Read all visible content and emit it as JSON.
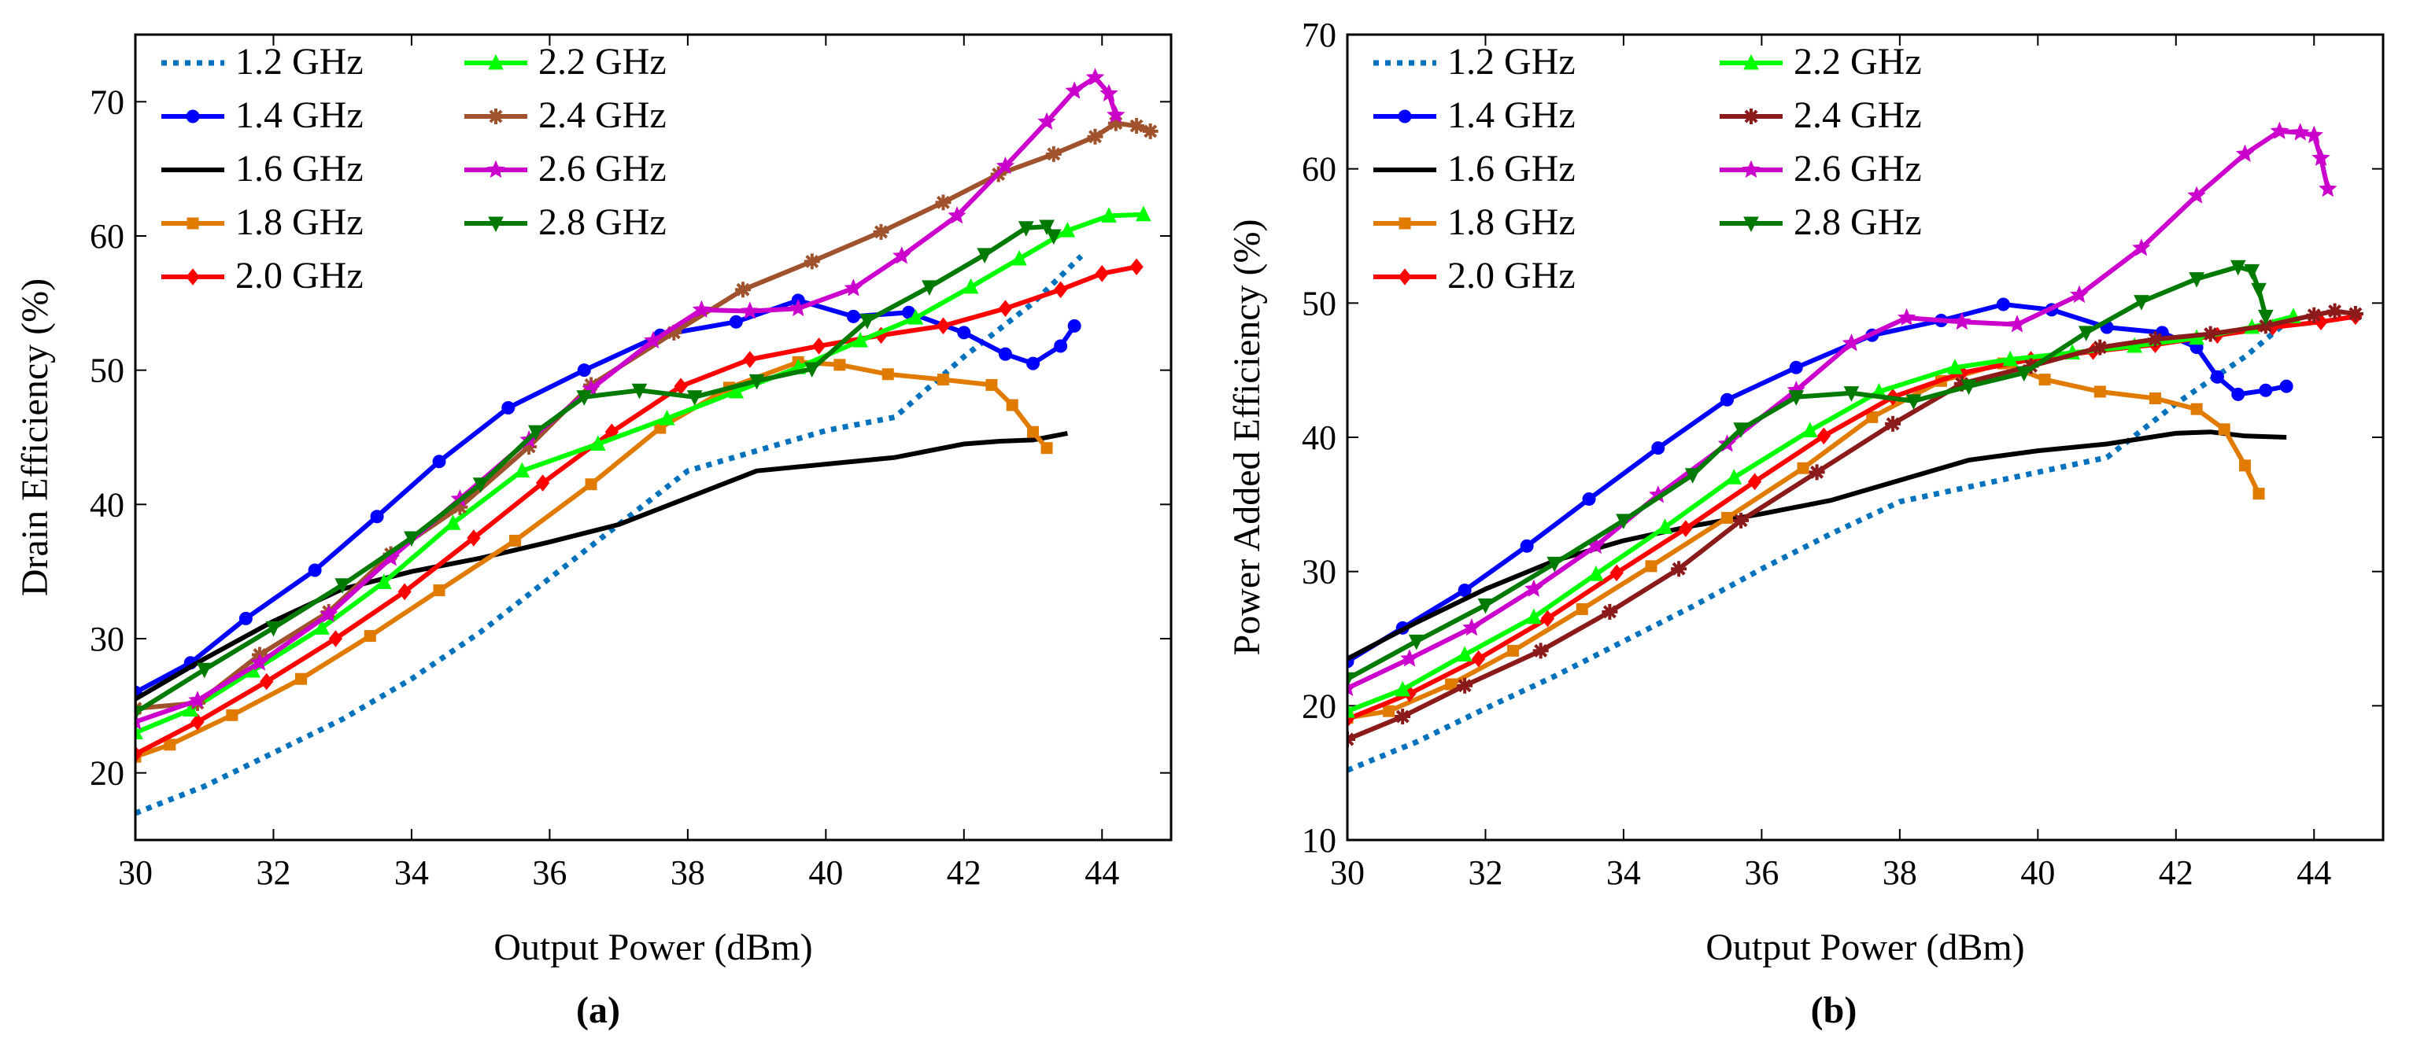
{
  "chart_data": [
    {
      "type": "line",
      "caption": "(a)",
      "xlabel": "Output Power (dBm)",
      "ylabel": "Drain Efficiency (%)",
      "xlim": [
        30,
        45
      ],
      "ylim": [
        15,
        75
      ],
      "xticks": [
        30,
        32,
        34,
        36,
        38,
        40,
        42,
        44
      ],
      "yticks": [
        20,
        30,
        40,
        50,
        60,
        70
      ],
      "legend_position": "top-left",
      "series": [
        {
          "name": "1.2 GHz",
          "color": "#0072BD",
          "style": "dotted",
          "marker": "none",
          "x": [
            30,
            31,
            32,
            33,
            34,
            35,
            36,
            37,
            38,
            39,
            40,
            41,
            42,
            43,
            43.7
          ],
          "y": [
            17,
            19,
            21.5,
            24,
            27,
            30.5,
            34.5,
            38.5,
            42.5,
            44,
            45.5,
            46.5,
            51,
            55,
            58.5
          ]
        },
        {
          "name": "1.4 GHz",
          "color": "#0000FF",
          "style": "solid",
          "marker": "circle",
          "x": [
            30,
            30.8,
            31.6,
            32.6,
            33.5,
            34.4,
            35.4,
            36.5,
            37.6,
            38.7,
            39.6,
            40.4,
            41.2,
            42,
            42.6,
            43,
            43.4,
            43.6
          ],
          "y": [
            26,
            28.2,
            31.5,
            35.1,
            39.1,
            43.2,
            47.2,
            50,
            52.6,
            53.6,
            55.2,
            54,
            54.3,
            52.8,
            51.2,
            50.5,
            51.8,
            53.3
          ]
        },
        {
          "name": "1.6 GHz",
          "color": "#000000",
          "style": "solid",
          "marker": "none",
          "x": [
            30,
            31,
            32,
            33,
            34,
            35,
            36,
            37,
            38,
            39,
            40,
            41,
            42,
            42.5,
            43,
            43.5
          ],
          "y": [
            25.5,
            28.5,
            31.3,
            33.7,
            35,
            36,
            37.2,
            38.5,
            40.5,
            42.5,
            43,
            43.5,
            44.5,
            44.7,
            44.8,
            45.3
          ]
        },
        {
          "name": "1.8 GHz",
          "color": "#E07B00",
          "style": "solid",
          "marker": "square",
          "x": [
            30,
            30.5,
            31.4,
            32.4,
            33.4,
            34.4,
            35.5,
            36.6,
            37.6,
            38.6,
            39.6,
            40.2,
            40.9,
            41.7,
            42.4,
            42.7,
            43,
            43.2
          ],
          "y": [
            21.2,
            22.1,
            24.3,
            27,
            30.2,
            33.6,
            37.3,
            41.5,
            45.7,
            48.7,
            50.6,
            50.4,
            49.7,
            49.3,
            48.9,
            47.4,
            45.4,
            44.2
          ]
        },
        {
          "name": "2.0 GHz",
          "color": "#FF0000",
          "style": "solid",
          "marker": "diamond",
          "x": [
            30,
            30.9,
            31.9,
            32.9,
            33.9,
            34.9,
            35.9,
            36.9,
            37.9,
            38.9,
            39.9,
            40.8,
            41.7,
            42.6,
            43.4,
            44,
            44.5
          ],
          "y": [
            21.4,
            23.8,
            26.8,
            30,
            33.5,
            37.5,
            41.6,
            45.4,
            48.8,
            50.8,
            51.8,
            52.6,
            53.3,
            54.6,
            56,
            57.2,
            57.7
          ]
        },
        {
          "name": "2.2 GHz",
          "color": "#00FF00",
          "style": "solid",
          "marker": "triangle-up",
          "x": [
            30,
            30.8,
            31.7,
            32.7,
            33.6,
            34.6,
            35.6,
            36.7,
            37.7,
            38.7,
            39.6,
            40.5,
            41.3,
            42.1,
            42.8,
            43.5,
            44.1,
            44.6
          ],
          "y": [
            23,
            24.7,
            27.6,
            30.8,
            34.2,
            38.6,
            42.5,
            44.5,
            46.4,
            48.4,
            50.2,
            52.2,
            53.9,
            56.2,
            58.3,
            60.4,
            61.5,
            61.6
          ]
        },
        {
          "name": "2.4 GHz",
          "color": "#A0522D",
          "style": "solid",
          "marker": "asterisk",
          "x": [
            30,
            30.9,
            31.8,
            32.8,
            33.7,
            34.7,
            35.7,
            36.6,
            37.8,
            38.8,
            39.8,
            40.8,
            41.7,
            42.5,
            43.3,
            43.9,
            44.2,
            44.5,
            44.7
          ],
          "y": [
            24.8,
            25.2,
            28.8,
            32,
            36.3,
            39.8,
            44.3,
            48.9,
            52.8,
            56,
            58.1,
            60.3,
            62.5,
            64.6,
            66.1,
            67.4,
            68.4,
            68.2,
            67.8
          ]
        },
        {
          "name": "2.6 GHz",
          "color": "#CC00CC",
          "style": "solid",
          "marker": "star",
          "x": [
            30,
            30.9,
            31.8,
            32.8,
            33.7,
            34.7,
            35.7,
            36.6,
            37.5,
            38.2,
            38.9,
            39.6,
            40.4,
            41.1,
            41.9,
            42.6,
            43.2,
            43.6,
            43.9,
            44.1,
            44.2
          ],
          "y": [
            23.8,
            25.4,
            28.2,
            31.8,
            36,
            40.4,
            44.8,
            48.6,
            52.2,
            54.5,
            54.4,
            54.6,
            56.1,
            58.5,
            61.5,
            65.2,
            68.5,
            70.8,
            71.8,
            70.6,
            69
          ]
        },
        {
          "name": "2.8 GHz",
          "color": "#007A00",
          "style": "solid",
          "marker": "triangle-down",
          "x": [
            30,
            31,
            32,
            33,
            34,
            35,
            35.8,
            36.5,
            37.3,
            38.1,
            39,
            39.8,
            40.6,
            41.5,
            42.3,
            42.9,
            43.2,
            43.3
          ],
          "y": [
            24.5,
            27.7,
            30.8,
            34,
            37.5,
            41.5,
            45.4,
            48,
            48.5,
            48,
            49.2,
            50.1,
            53.7,
            56.2,
            58.6,
            60.6,
            60.7,
            60
          ]
        }
      ]
    },
    {
      "type": "line",
      "caption": "(b)",
      "xlabel": "Output Power (dBm)",
      "ylabel": "Power Added Efficiency (%)",
      "xlim": [
        30,
        45
      ],
      "ylim": [
        10,
        70
      ],
      "xticks": [
        30,
        32,
        34,
        36,
        38,
        40,
        42,
        44
      ],
      "yticks": [
        10,
        20,
        30,
        40,
        50,
        60,
        70
      ],
      "legend_position": "top-left",
      "series": [
        {
          "name": "1.2 GHz",
          "color": "#0072BD",
          "style": "dotted",
          "marker": "none",
          "x": [
            30,
            31,
            32,
            33,
            34,
            35,
            36,
            37,
            38,
            39,
            40,
            41,
            42,
            43,
            43.7
          ],
          "y": [
            15.2,
            17.3,
            19.8,
            22.2,
            24.8,
            27.4,
            30.2,
            32.8,
            35.2,
            36.3,
            37.4,
            38.5,
            42.5,
            46,
            49
          ]
        },
        {
          "name": "1.4 GHz",
          "color": "#0000FF",
          "style": "solid",
          "marker": "circle",
          "x": [
            30,
            30.8,
            31.7,
            32.6,
            33.5,
            34.5,
            35.5,
            36.5,
            37.6,
            38.6,
            39.5,
            40.2,
            41,
            41.8,
            42.3,
            42.6,
            42.9,
            43.3,
            43.6
          ],
          "y": [
            23.3,
            25.8,
            28.6,
            31.9,
            35.4,
            39.2,
            42.8,
            45.2,
            47.6,
            48.7,
            49.9,
            49.5,
            48.2,
            47.8,
            46.7,
            44.5,
            43.2,
            43.5,
            43.8
          ]
        },
        {
          "name": "1.6 GHz",
          "color": "#000000",
          "style": "solid",
          "marker": "none",
          "x": [
            30,
            31,
            32,
            33,
            34,
            35,
            36,
            37,
            38,
            39,
            40,
            41,
            42,
            42.5,
            43,
            43.6
          ],
          "y": [
            23.5,
            26.2,
            28.7,
            30.8,
            32.3,
            33.4,
            34.3,
            35.3,
            36.8,
            38.3,
            39,
            39.5,
            40.3,
            40.4,
            40.1,
            40
          ]
        },
        {
          "name": "1.8 GHz",
          "color": "#E07B00",
          "style": "solid",
          "marker": "square",
          "x": [
            30,
            30.6,
            31.5,
            32.4,
            33.4,
            34.4,
            35.5,
            36.6,
            37.6,
            38.6,
            39.5,
            40.1,
            40.9,
            41.7,
            42.3,
            42.7,
            43,
            43.2
          ],
          "y": [
            19.1,
            19.6,
            21.6,
            24.1,
            27.2,
            30.4,
            34,
            37.7,
            41.5,
            44.2,
            45.5,
            44.3,
            43.4,
            42.9,
            42.1,
            40.6,
            37.9,
            35.8
          ]
        },
        {
          "name": "2.0 GHz",
          "color": "#FF0000",
          "style": "solid",
          "marker": "diamond",
          "x": [
            30,
            30.9,
            31.9,
            32.9,
            33.9,
            34.9,
            35.9,
            36.9,
            37.9,
            38.9,
            39.9,
            40.8,
            41.7,
            42.6,
            43.4,
            44.1,
            44.6
          ],
          "y": [
            19,
            20.9,
            23.5,
            26.5,
            29.9,
            33.2,
            36.7,
            40.1,
            43,
            44.8,
            45.8,
            46.4,
            46.9,
            47.6,
            48.2,
            48.6,
            49
          ]
        },
        {
          "name": "2.2 GHz",
          "color": "#00FF00",
          "style": "solid",
          "marker": "triangle-up",
          "x": [
            30,
            30.8,
            31.7,
            32.7,
            33.6,
            34.6,
            35.6,
            36.7,
            37.7,
            38.8,
            39.6,
            40.5,
            41.4,
            42.3,
            43.1,
            43.7
          ],
          "y": [
            19.6,
            21.2,
            23.8,
            26.6,
            29.8,
            33.3,
            37,
            40.5,
            43.4,
            45.2,
            45.8,
            46.3,
            46.8,
            47.4,
            48.2,
            49
          ]
        },
        {
          "name": "2.4 GHz",
          "color": "#8B1A1A",
          "style": "solid",
          "marker": "asterisk",
          "x": [
            30,
            30.8,
            31.7,
            32.8,
            33.8,
            34.8,
            35.7,
            36.8,
            37.9,
            38.9,
            39.9,
            40.9,
            41.7,
            42.5,
            43.3,
            44,
            44.3,
            44.6
          ],
          "y": [
            17.5,
            19.2,
            21.5,
            24.1,
            27,
            30.2,
            33.8,
            37.4,
            41,
            44,
            45.3,
            46.7,
            47.3,
            47.7,
            48.3,
            49.1,
            49.4,
            49.2
          ]
        },
        {
          "name": "2.6 GHz",
          "color": "#CC00CC",
          "style": "solid",
          "marker": "star",
          "x": [
            30,
            30.9,
            31.8,
            32.7,
            33.6,
            34.5,
            35.5,
            36.5,
            37.3,
            38.1,
            38.9,
            39.7,
            40.6,
            41.5,
            42.3,
            43,
            43.5,
            43.8,
            44,
            44.1,
            44.2
          ],
          "y": [
            21.3,
            23.5,
            25.8,
            28.7,
            31.9,
            35.7,
            39.5,
            43.5,
            47,
            48.9,
            48.6,
            48.4,
            50.6,
            54.1,
            58,
            61.1,
            62.8,
            62.7,
            62.5,
            60.8,
            58.5
          ]
        },
        {
          "name": "2.8 GHz",
          "color": "#007A00",
          "style": "solid",
          "marker": "triangle-down",
          "x": [
            30,
            31,
            32,
            33,
            34,
            35,
            35.7,
            36.5,
            37.3,
            38.2,
            39,
            39.8,
            40.7,
            41.5,
            42.3,
            42.9,
            43.1,
            43.2,
            43.3
          ],
          "y": [
            22,
            24.8,
            27.5,
            30.6,
            33.8,
            37.2,
            40.6,
            43,
            43.3,
            42.7,
            43.8,
            44.8,
            47.8,
            50.1,
            51.8,
            52.7,
            52.4,
            51,
            49
          ]
        }
      ]
    }
  ]
}
